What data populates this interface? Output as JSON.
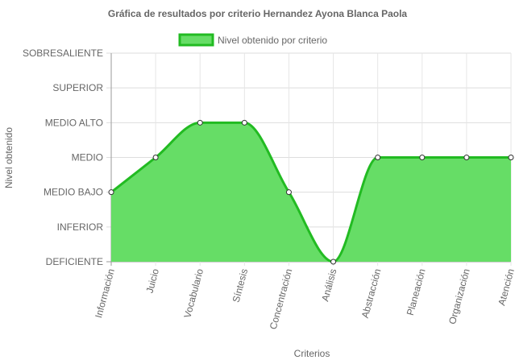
{
  "chart_data": {
    "type": "area",
    "title": "Gráfica de resultados por criterio Hernandez Ayona Blanca Paola",
    "xlabel": "Criterios",
    "ylabel": "Nivel obtenido",
    "categories": [
      "Información",
      "Juicio",
      "Vocabulario",
      "Síntesis",
      "Concentración",
      "Análisis",
      "Abstracción",
      "Planeación",
      "Organización",
      "Atención"
    ],
    "levels": [
      "DEFICIENTE",
      "INFERIOR",
      "MEDIO BAJO",
      "MEDIO",
      "MEDIO ALTO",
      "SUPERIOR",
      "SOBRESALIENTE"
    ],
    "ylim": [
      0,
      6
    ],
    "series": [
      {
        "name": "Nivel obtenido por criterio",
        "values": [
          2,
          3,
          4,
          4,
          2,
          0,
          3,
          3,
          3,
          3
        ],
        "fill_color": "#66dd66",
        "line_color": "#22bb22"
      }
    ],
    "legend_position": "top",
    "grid": true
  }
}
